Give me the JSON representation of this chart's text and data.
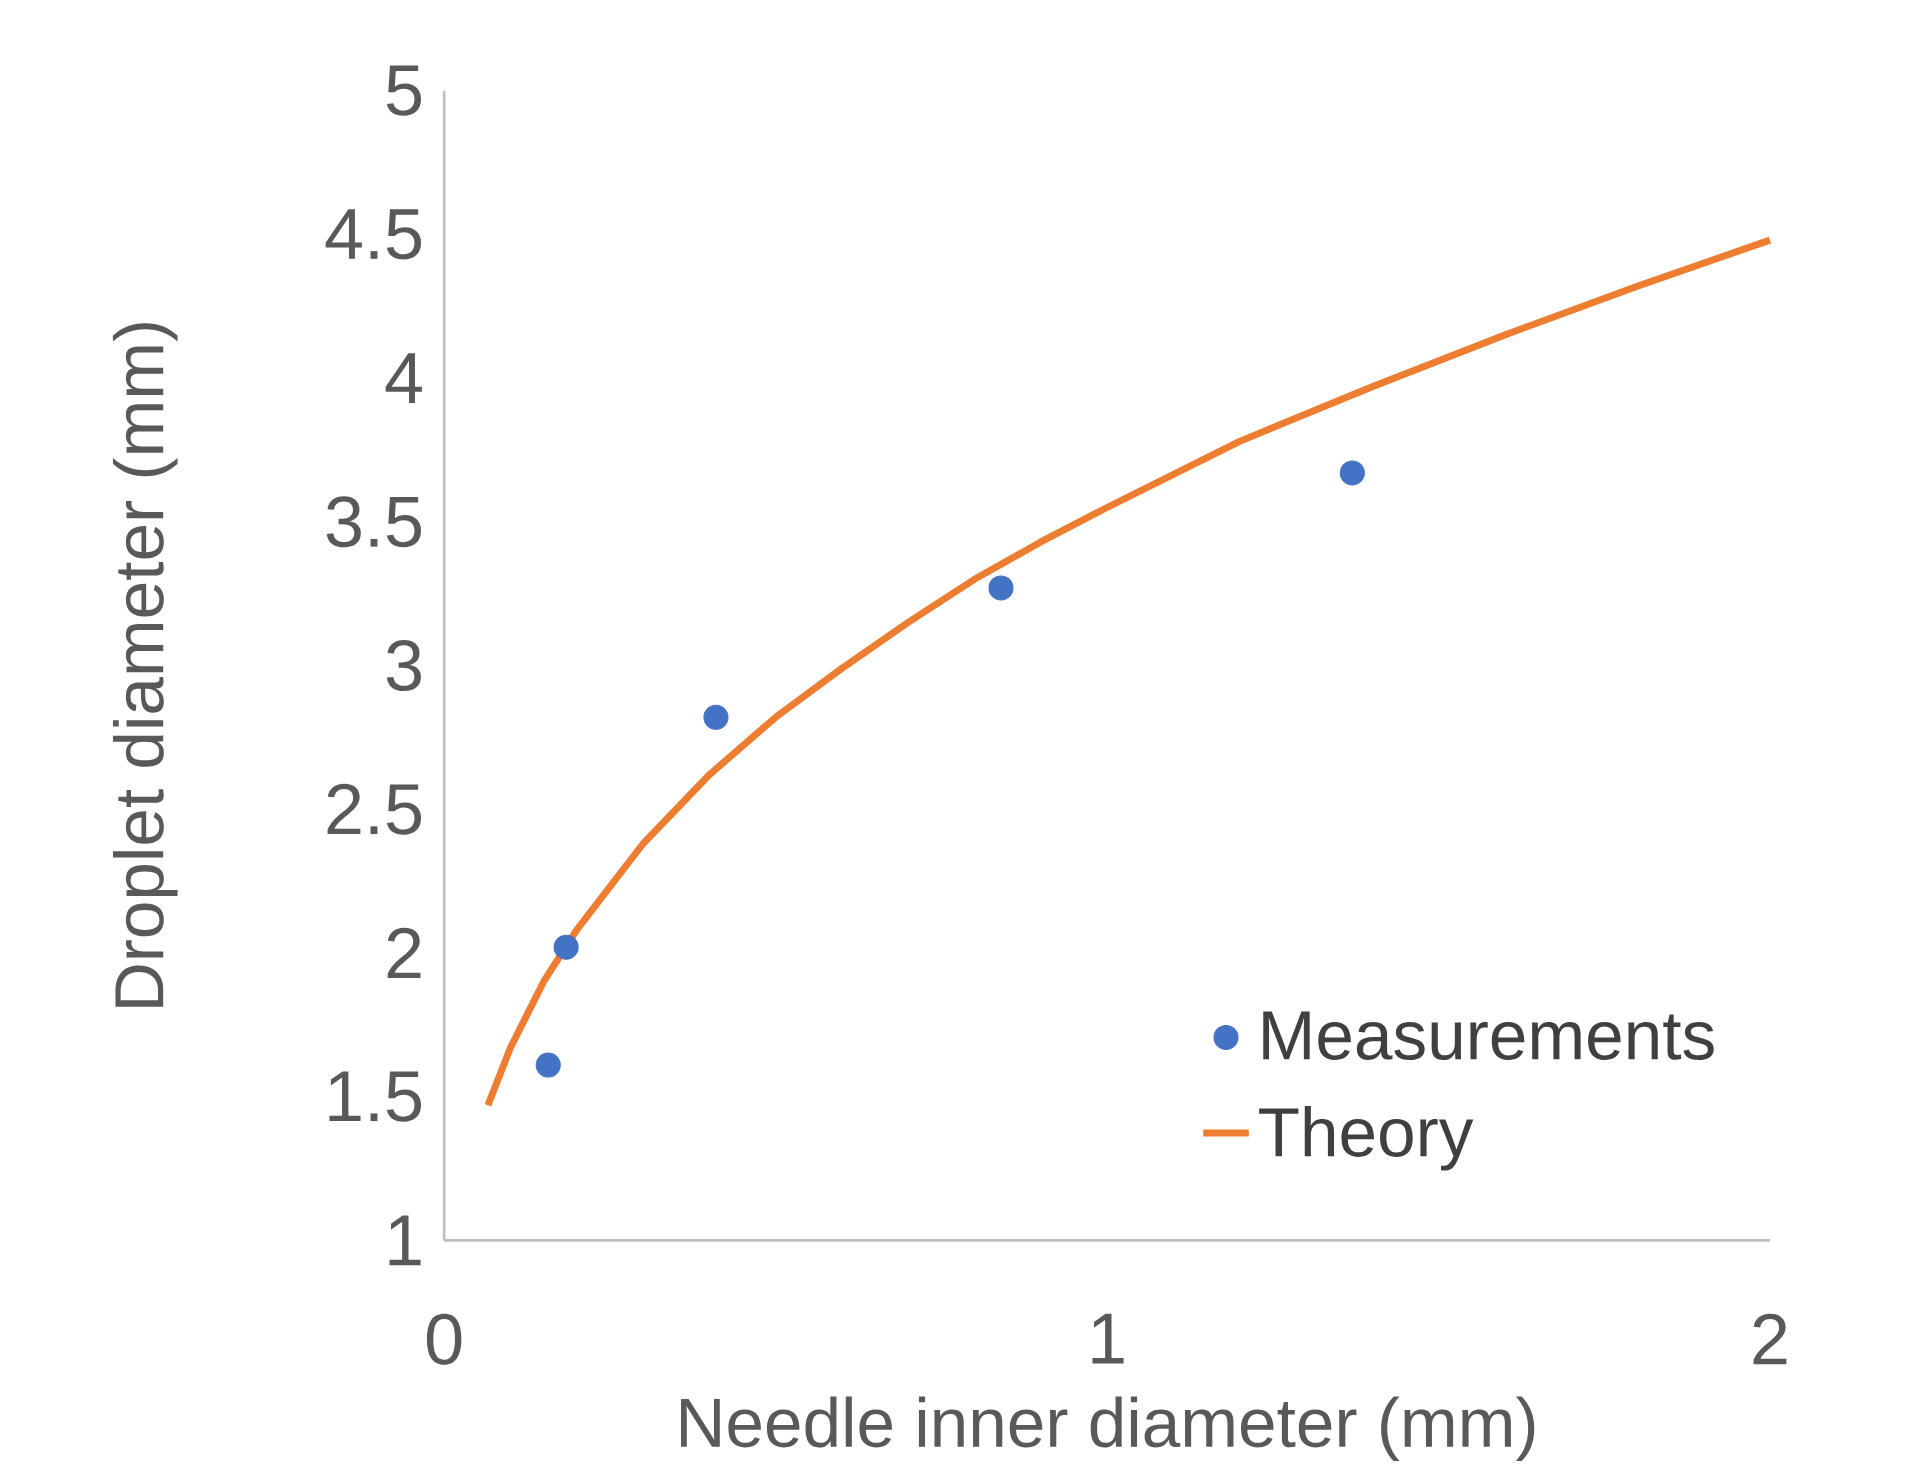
{
  "chart_data": {
    "type": "scatter",
    "xlabel": "Needle inner diameter (mm)",
    "ylabel": "Droplet diameter (mm)",
    "xlim": [
      0,
      2
    ],
    "xticks": [
      0,
      1,
      2
    ],
    "ylim": [
      1,
      5
    ],
    "yticks": [
      1,
      1.5,
      2,
      2.5,
      3,
      3.5,
      4,
      4.5,
      5
    ],
    "legend": "bottom right",
    "series": [
      {
        "name": "Measurements",
        "type": "scatter",
        "marker": "circle",
        "color": "#4472c4",
        "x": [
          0.157,
          0.184,
          0.41,
          0.84,
          1.37
        ],
        "values": [
          1.61,
          2.02,
          2.82,
          3.27,
          3.67
        ]
      },
      {
        "name": "Theory",
        "type": "line",
        "marker": "none",
        "line_style": "solid",
        "color": "#ed7d31",
        "x": [
          0.066,
          0.1,
          0.15,
          0.2,
          0.3,
          0.4,
          0.5,
          0.6,
          0.7,
          0.8,
          0.9,
          1.0,
          1.2,
          1.4,
          1.6,
          1.8,
          2.0
        ],
        "values": [
          1.47,
          1.67,
          1.9,
          2.08,
          2.38,
          2.62,
          2.82,
          2.99,
          3.15,
          3.3,
          3.43,
          3.55,
          3.78,
          3.97,
          4.15,
          4.32,
          4.48
        ]
      }
    ]
  }
}
